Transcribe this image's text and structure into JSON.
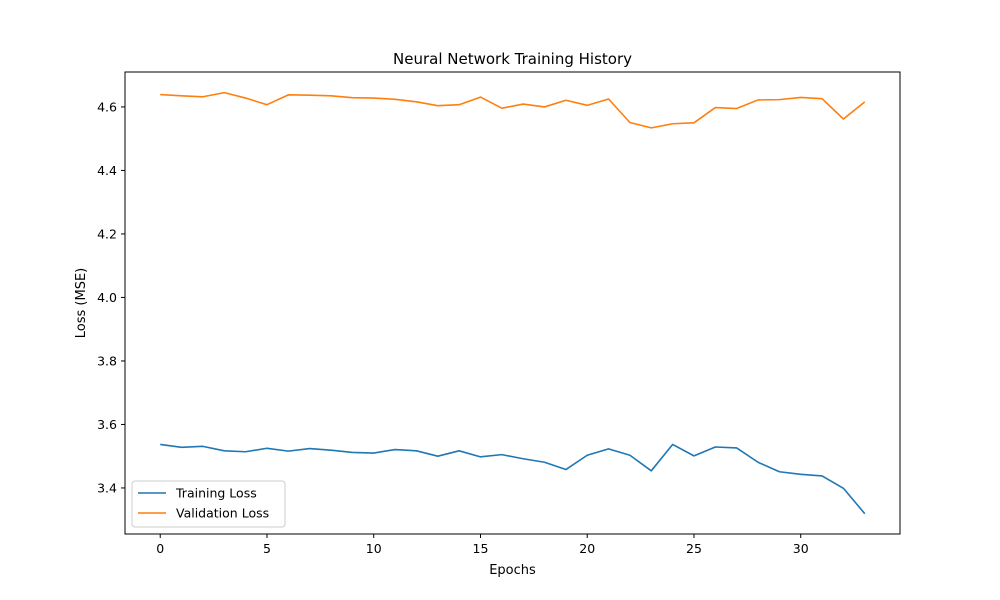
{
  "chart_data": {
    "type": "line",
    "title": "Neural Network Training History",
    "xlabel": "Epochs",
    "ylabel": "Loss (MSE)",
    "xlim": [
      -1.65,
      34.65
    ],
    "ylim": [
      3.255,
      4.71
    ],
    "x": [
      0,
      1,
      2,
      3,
      4,
      5,
      6,
      7,
      8,
      9,
      10,
      11,
      12,
      13,
      14,
      15,
      16,
      17,
      18,
      19,
      20,
      21,
      22,
      23,
      24,
      25,
      26,
      27,
      28,
      29,
      30,
      31,
      32,
      33
    ],
    "xticks": [
      0,
      5,
      10,
      15,
      20,
      25,
      30
    ],
    "xtick_labels": [
      "0",
      "5",
      "10",
      "15",
      "20",
      "25",
      "30"
    ],
    "yticks": [
      3.4,
      3.6,
      3.8,
      4.0,
      4.2,
      4.4,
      4.6
    ],
    "ytick_labels": [
      "3.4",
      "3.6",
      "3.8",
      "4.0",
      "4.2",
      "4.4",
      "4.6"
    ],
    "grid": false,
    "legend_position": "lower-left",
    "series": [
      {
        "name": "Training Loss",
        "color": "#1f77b4",
        "values": [
          3.537,
          3.528,
          3.531,
          3.517,
          3.514,
          3.525,
          3.516,
          3.524,
          3.519,
          3.512,
          3.51,
          3.521,
          3.517,
          3.5,
          3.517,
          3.498,
          3.505,
          3.492,
          3.481,
          3.458,
          3.503,
          3.523,
          3.503,
          3.454,
          3.537,
          3.501,
          3.529,
          3.526,
          3.481,
          3.451,
          3.443,
          3.438,
          3.399,
          3.319
        ]
      },
      {
        "name": "Validation Loss",
        "color": "#ff7f0e",
        "values": [
          4.639,
          4.635,
          4.632,
          4.645,
          4.628,
          4.607,
          4.638,
          4.637,
          4.635,
          4.629,
          4.628,
          4.624,
          4.616,
          4.604,
          4.607,
          4.631,
          4.596,
          4.609,
          4.6,
          4.621,
          4.605,
          4.625,
          4.551,
          4.534,
          4.547,
          4.55,
          4.598,
          4.595,
          4.622,
          4.623,
          4.63,
          4.626,
          4.562,
          4.616
        ]
      }
    ]
  }
}
